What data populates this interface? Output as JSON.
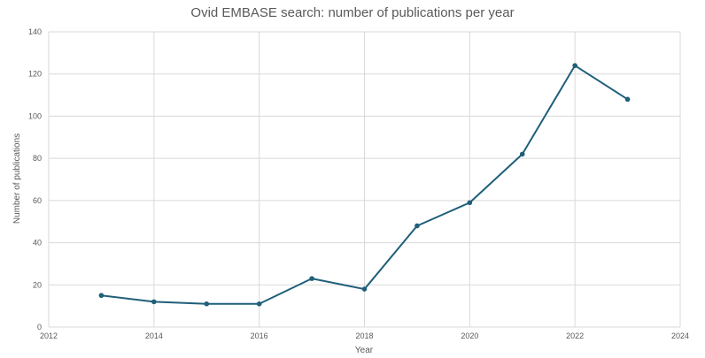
{
  "chart_data": {
    "type": "scatter",
    "title": "Ovid EMBASE search: number of publications per year",
    "xlabel": "Year",
    "ylabel": "Number of publications",
    "xlim": [
      2012,
      2024
    ],
    "ylim": [
      0,
      140
    ],
    "x_ticks": [
      "2012",
      "2014",
      "2016",
      "2018",
      "2020",
      "2022",
      "2024"
    ],
    "y_ticks": [
      "0",
      "20",
      "40",
      "60",
      "80",
      "100",
      "120",
      "140"
    ],
    "grid": true,
    "line_color": "#1f5f7a",
    "series": [
      {
        "x": [
          2013,
          2014,
          2015,
          2016,
          2017,
          2018,
          2019,
          2020,
          2021,
          2022,
          2023
        ],
        "y": [
          15,
          12,
          11,
          11,
          23,
          18,
          48,
          59,
          82,
          124,
          108
        ]
      }
    ]
  }
}
